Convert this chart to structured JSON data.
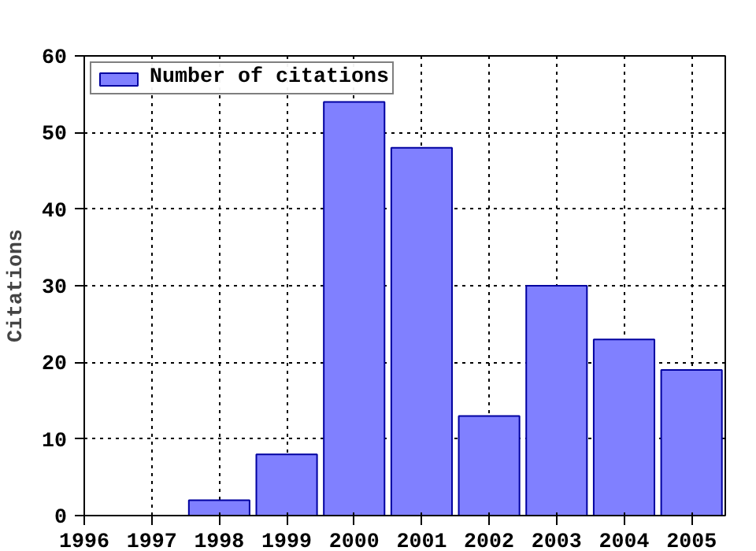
{
  "chart_data": {
    "type": "bar",
    "ylabel": "Citations",
    "x": [
      1998,
      1999,
      2000,
      2001,
      2002,
      2003,
      2004,
      2005
    ],
    "series": [
      {
        "name": "Number of citations",
        "color": "#8080ff",
        "values": [
          2,
          8,
          54,
          48,
          13,
          30,
          23,
          19
        ]
      }
    ],
    "xlim": [
      1996,
      2005.5
    ],
    "xticks": [
      1996,
      1997,
      1998,
      1999,
      2000,
      2001,
      2002,
      2003,
      2004,
      2005
    ],
    "ylim": [
      0,
      60
    ],
    "yticks": [
      0,
      10,
      20,
      30,
      40,
      50,
      60
    ],
    "grid": true,
    "legend": "top left"
  }
}
